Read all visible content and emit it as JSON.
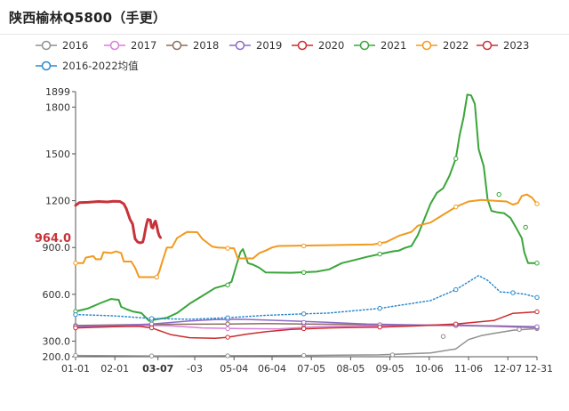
{
  "page": {
    "title": "陕西榆林Q5800（手更）"
  },
  "chart_data": {
    "type": "line",
    "title": "陕西榆林Q5800（手更）",
    "xlabel": "",
    "ylabel": "",
    "x_tick_labels": [
      "01-01",
      "02-01",
      "03-07",
      "-03",
      "05-04",
      "06-04",
      "07-05",
      "08-05",
      "09-05",
      "10-06",
      "11-06",
      "12-07",
      "12-31"
    ],
    "highlight_x_label": "03-07",
    "y_tick_labels": [
      "200.0",
      "300.0",
      "600.0",
      "900.0",
      "1200",
      "1500",
      "1800",
      "1899"
    ],
    "y_ticks": [
      200,
      300,
      600,
      900,
      1200,
      1500,
      1800,
      1899
    ],
    "ylim": [
      200,
      1899
    ],
    "highlight_y_value": 964.0,
    "highlight_y_label": "964.0",
    "grid": false,
    "legend_position": "top",
    "series": [
      {
        "name": "2016",
        "color": "#909090",
        "width": 1.5,
        "dotted": false,
        "points": [
          [
            0,
            208
          ],
          [
            60,
            205
          ],
          [
            120,
            206
          ],
          [
            180,
            208
          ],
          [
            240,
            212
          ],
          [
            280,
            224
          ],
          [
            300,
            250
          ],
          [
            310,
            310
          ],
          [
            320,
            335
          ],
          [
            330,
            350
          ],
          [
            345,
            370
          ],
          [
            360,
            378
          ],
          [
            364,
            380
          ]
        ]
      },
      {
        "name": "2017",
        "color": "#d97fd9",
        "width": 1.5,
        "dotted": false,
        "points": [
          [
            0,
            392
          ],
          [
            30,
            395
          ],
          [
            55,
            402
          ],
          [
            75,
            398
          ],
          [
            100,
            385
          ],
          [
            130,
            380
          ],
          [
            160,
            378
          ],
          [
            180,
            388
          ],
          [
            200,
            395
          ],
          [
            230,
            398
          ],
          [
            260,
            400
          ],
          [
            300,
            405
          ],
          [
            330,
            395
          ],
          [
            364,
            385
          ]
        ]
      },
      {
        "name": "2018",
        "color": "#8c6e60",
        "width": 1.5,
        "dotted": false,
        "points": [
          [
            0,
            400
          ],
          [
            40,
            405
          ],
          [
            80,
            408
          ],
          [
            120,
            410
          ],
          [
            150,
            412
          ],
          [
            180,
            410
          ],
          [
            210,
            408
          ],
          [
            240,
            405
          ],
          [
            270,
            402
          ],
          [
            300,
            400
          ],
          [
            330,
            395
          ],
          [
            364,
            390
          ]
        ]
      },
      {
        "name": "2019",
        "color": "#8e6ac8",
        "width": 1.5,
        "dotted": false,
        "points": [
          [
            0,
            395
          ],
          [
            30,
            400
          ],
          [
            60,
            410
          ],
          [
            90,
            430
          ],
          [
            110,
            438
          ],
          [
            130,
            440
          ],
          [
            150,
            435
          ],
          [
            170,
            430
          ],
          [
            200,
            420
          ],
          [
            230,
            410
          ],
          [
            260,
            405
          ],
          [
            300,
            400
          ],
          [
            330,
            398
          ],
          [
            364,
            392
          ]
        ]
      },
      {
        "name": "2020",
        "color": "#cc2c2c",
        "width": 1.5,
        "dotted": false,
        "points": [
          [
            0,
            385
          ],
          [
            30,
            392
          ],
          [
            50,
            395
          ],
          [
            60,
            385
          ],
          [
            75,
            342
          ],
          [
            90,
            322
          ],
          [
            110,
            318
          ],
          [
            120,
            325
          ],
          [
            135,
            345
          ],
          [
            150,
            360
          ],
          [
            170,
            375
          ],
          [
            200,
            385
          ],
          [
            240,
            390
          ],
          [
            270,
            398
          ],
          [
            300,
            410
          ],
          [
            330,
            432
          ],
          [
            345,
            478
          ],
          [
            364,
            488
          ]
        ]
      },
      {
        "name": "2021",
        "color": "#3aa63a",
        "width": 2,
        "dotted": false,
        "points": [
          [
            0,
            490
          ],
          [
            10,
            510
          ],
          [
            20,
            545
          ],
          [
            28,
            570
          ],
          [
            34,
            565
          ],
          [
            36,
            520
          ],
          [
            40,
            505
          ],
          [
            45,
            490
          ],
          [
            52,
            480
          ],
          [
            58,
            430
          ],
          [
            64,
            440
          ],
          [
            72,
            450
          ],
          [
            80,
            480
          ],
          [
            90,
            540
          ],
          [
            100,
            590
          ],
          [
            110,
            640
          ],
          [
            118,
            658
          ],
          [
            123,
            680
          ],
          [
            127,
            790
          ],
          [
            130,
            870
          ],
          [
            132,
            890
          ],
          [
            134,
            845
          ],
          [
            136,
            800
          ],
          [
            140,
            790
          ],
          [
            145,
            770
          ],
          [
            150,
            740
          ],
          [
            170,
            738
          ],
          [
            190,
            745
          ],
          [
            200,
            760
          ],
          [
            210,
            800
          ],
          [
            220,
            820
          ],
          [
            230,
            840
          ],
          [
            240,
            858
          ],
          [
            250,
            875
          ],
          [
            255,
            880
          ],
          [
            260,
            898
          ],
          [
            265,
            910
          ],
          [
            270,
            980
          ],
          [
            275,
            1080
          ],
          [
            280,
            1180
          ],
          [
            285,
            1250
          ],
          [
            290,
            1280
          ],
          [
            295,
            1360
          ],
          [
            300,
            1470
          ],
          [
            303,
            1620
          ],
          [
            306,
            1730
          ],
          [
            309,
            1880
          ],
          [
            312,
            1875
          ],
          [
            315,
            1820
          ],
          [
            318,
            1530
          ],
          [
            322,
            1420
          ],
          [
            325,
            1210
          ],
          [
            328,
            1135
          ],
          [
            333,
            1125
          ],
          [
            338,
            1120
          ],
          [
            343,
            1090
          ],
          [
            348,
            1020
          ],
          [
            352,
            960
          ],
          [
            354,
            870
          ],
          [
            357,
            800
          ],
          [
            364,
            800
          ]
        ]
      },
      {
        "name": "2022",
        "color": "#f19a1e",
        "width": 2,
        "dotted": false,
        "points": [
          [
            0,
            800
          ],
          [
            6,
            800
          ],
          [
            8,
            835
          ],
          [
            14,
            845
          ],
          [
            16,
            825
          ],
          [
            20,
            825
          ],
          [
            22,
            870
          ],
          [
            28,
            865
          ],
          [
            32,
            875
          ],
          [
            36,
            865
          ],
          [
            38,
            810
          ],
          [
            44,
            810
          ],
          [
            47,
            770
          ],
          [
            50,
            710
          ],
          [
            64,
            710
          ],
          [
            66,
            745
          ],
          [
            68,
            800
          ],
          [
            72,
            900
          ],
          [
            76,
            900
          ],
          [
            80,
            960
          ],
          [
            86,
            990
          ],
          [
            88,
            1000
          ],
          [
            96,
            998
          ],
          [
            100,
            955
          ],
          [
            104,
            930
          ],
          [
            108,
            905
          ],
          [
            112,
            900
          ],
          [
            125,
            895
          ],
          [
            128,
            830
          ],
          [
            140,
            830
          ],
          [
            145,
            865
          ],
          [
            150,
            880
          ],
          [
            155,
            900
          ],
          [
            160,
            910
          ],
          [
            200,
            915
          ],
          [
            235,
            920
          ],
          [
            245,
            935
          ],
          [
            255,
            975
          ],
          [
            265,
            1000
          ],
          [
            270,
            1040
          ],
          [
            280,
            1060
          ],
          [
            290,
            1110
          ],
          [
            300,
            1160
          ],
          [
            310,
            1195
          ],
          [
            320,
            1205
          ],
          [
            330,
            1200
          ],
          [
            340,
            1195
          ],
          [
            345,
            1175
          ],
          [
            349,
            1185
          ],
          [
            352,
            1230
          ],
          [
            356,
            1240
          ],
          [
            360,
            1220
          ],
          [
            364,
            1180
          ]
        ]
      },
      {
        "name": "2023",
        "color": "#c8323a",
        "width": 3,
        "dotted": false,
        "points": [
          [
            0,
            1170
          ],
          [
            3,
            1188
          ],
          [
            10,
            1190
          ],
          [
            18,
            1195
          ],
          [
            25,
            1192
          ],
          [
            30,
            1196
          ],
          [
            35,
            1195
          ],
          [
            38,
            1180
          ],
          [
            40,
            1150
          ],
          [
            43,
            1080
          ],
          [
            45,
            1050
          ],
          [
            46,
            1000
          ],
          [
            47,
            955
          ],
          [
            49,
            935
          ],
          [
            51,
            930
          ],
          [
            53,
            935
          ],
          [
            54,
            965
          ],
          [
            55,
            1010
          ],
          [
            56,
            1050
          ],
          [
            57,
            1080
          ],
          [
            59,
            1075
          ],
          [
            60,
            1030
          ],
          [
            61,
            1025
          ],
          [
            62,
            1055
          ],
          [
            63,
            1070
          ],
          [
            64,
            1040
          ],
          [
            65,
            1000
          ],
          [
            66,
            975
          ],
          [
            67,
            964
          ]
        ]
      },
      {
        "name": "2016-2022均值",
        "color": "#2a8acd",
        "width": 1.5,
        "dotted": true,
        "points": [
          [
            0,
            470
          ],
          [
            30,
            462
          ],
          [
            60,
            445
          ],
          [
            90,
            440
          ],
          [
            120,
            450
          ],
          [
            150,
            465
          ],
          [
            180,
            475
          ],
          [
            200,
            480
          ],
          [
            240,
            510
          ],
          [
            280,
            560
          ],
          [
            300,
            630
          ],
          [
            310,
            680
          ],
          [
            318,
            720
          ],
          [
            325,
            690
          ],
          [
            335,
            615
          ],
          [
            345,
            610
          ],
          [
            355,
            600
          ],
          [
            364,
            580
          ]
        ]
      }
    ],
    "markers": {
      "2016": [
        [
          0,
          208
        ],
        [
          60,
          205
        ],
        [
          120,
          206
        ],
        [
          180,
          208
        ],
        [
          250,
          212
        ],
        [
          290,
          330
        ],
        [
          350,
          375
        ],
        [
          364,
          380
        ]
      ],
      "2017": [
        [
          0,
          392
        ],
        [
          60,
          400
        ],
        [
          120,
          380
        ],
        [
          180,
          388
        ],
        [
          240,
          398
        ],
        [
          300,
          405
        ],
        [
          364,
          385
        ]
      ],
      "2018": [
        [
          0,
          400
        ],
        [
          60,
          405
        ],
        [
          120,
          410
        ],
        [
          180,
          410
        ],
        [
          240,
          405
        ],
        [
          300,
          400
        ],
        [
          364,
          390
        ]
      ],
      "2019": [
        [
          0,
          395
        ],
        [
          60,
          410
        ],
        [
          120,
          440
        ],
        [
          180,
          420
        ],
        [
          240,
          405
        ],
        [
          300,
          400
        ],
        [
          364,
          392
        ]
      ],
      "2020": [
        [
          0,
          385
        ],
        [
          60,
          385
        ],
        [
          120,
          325
        ],
        [
          180,
          380
        ],
        [
          240,
          390
        ],
        [
          300,
          410
        ],
        [
          364,
          488
        ]
      ],
      "2021": [
        [
          0,
          490
        ],
        [
          60,
          435
        ],
        [
          120,
          660
        ],
        [
          180,
          740
        ],
        [
          240,
          858
        ],
        [
          300,
          1470
        ],
        [
          334,
          1240
        ],
        [
          355,
          1030
        ],
        [
          364,
          800
        ]
      ],
      "2022": [
        [
          0,
          800
        ],
        [
          64,
          710
        ],
        [
          120,
          895
        ],
        [
          180,
          910
        ],
        [
          240,
          925
        ],
        [
          300,
          1160
        ],
        [
          364,
          1180
        ]
      ],
      "2016-2022均值": [
        [
          0,
          470
        ],
        [
          60,
          445
        ],
        [
          120,
          450
        ],
        [
          180,
          475
        ],
        [
          240,
          510
        ],
        [
          300,
          630
        ],
        [
          345,
          610
        ],
        [
          364,
          580
        ]
      ]
    }
  }
}
